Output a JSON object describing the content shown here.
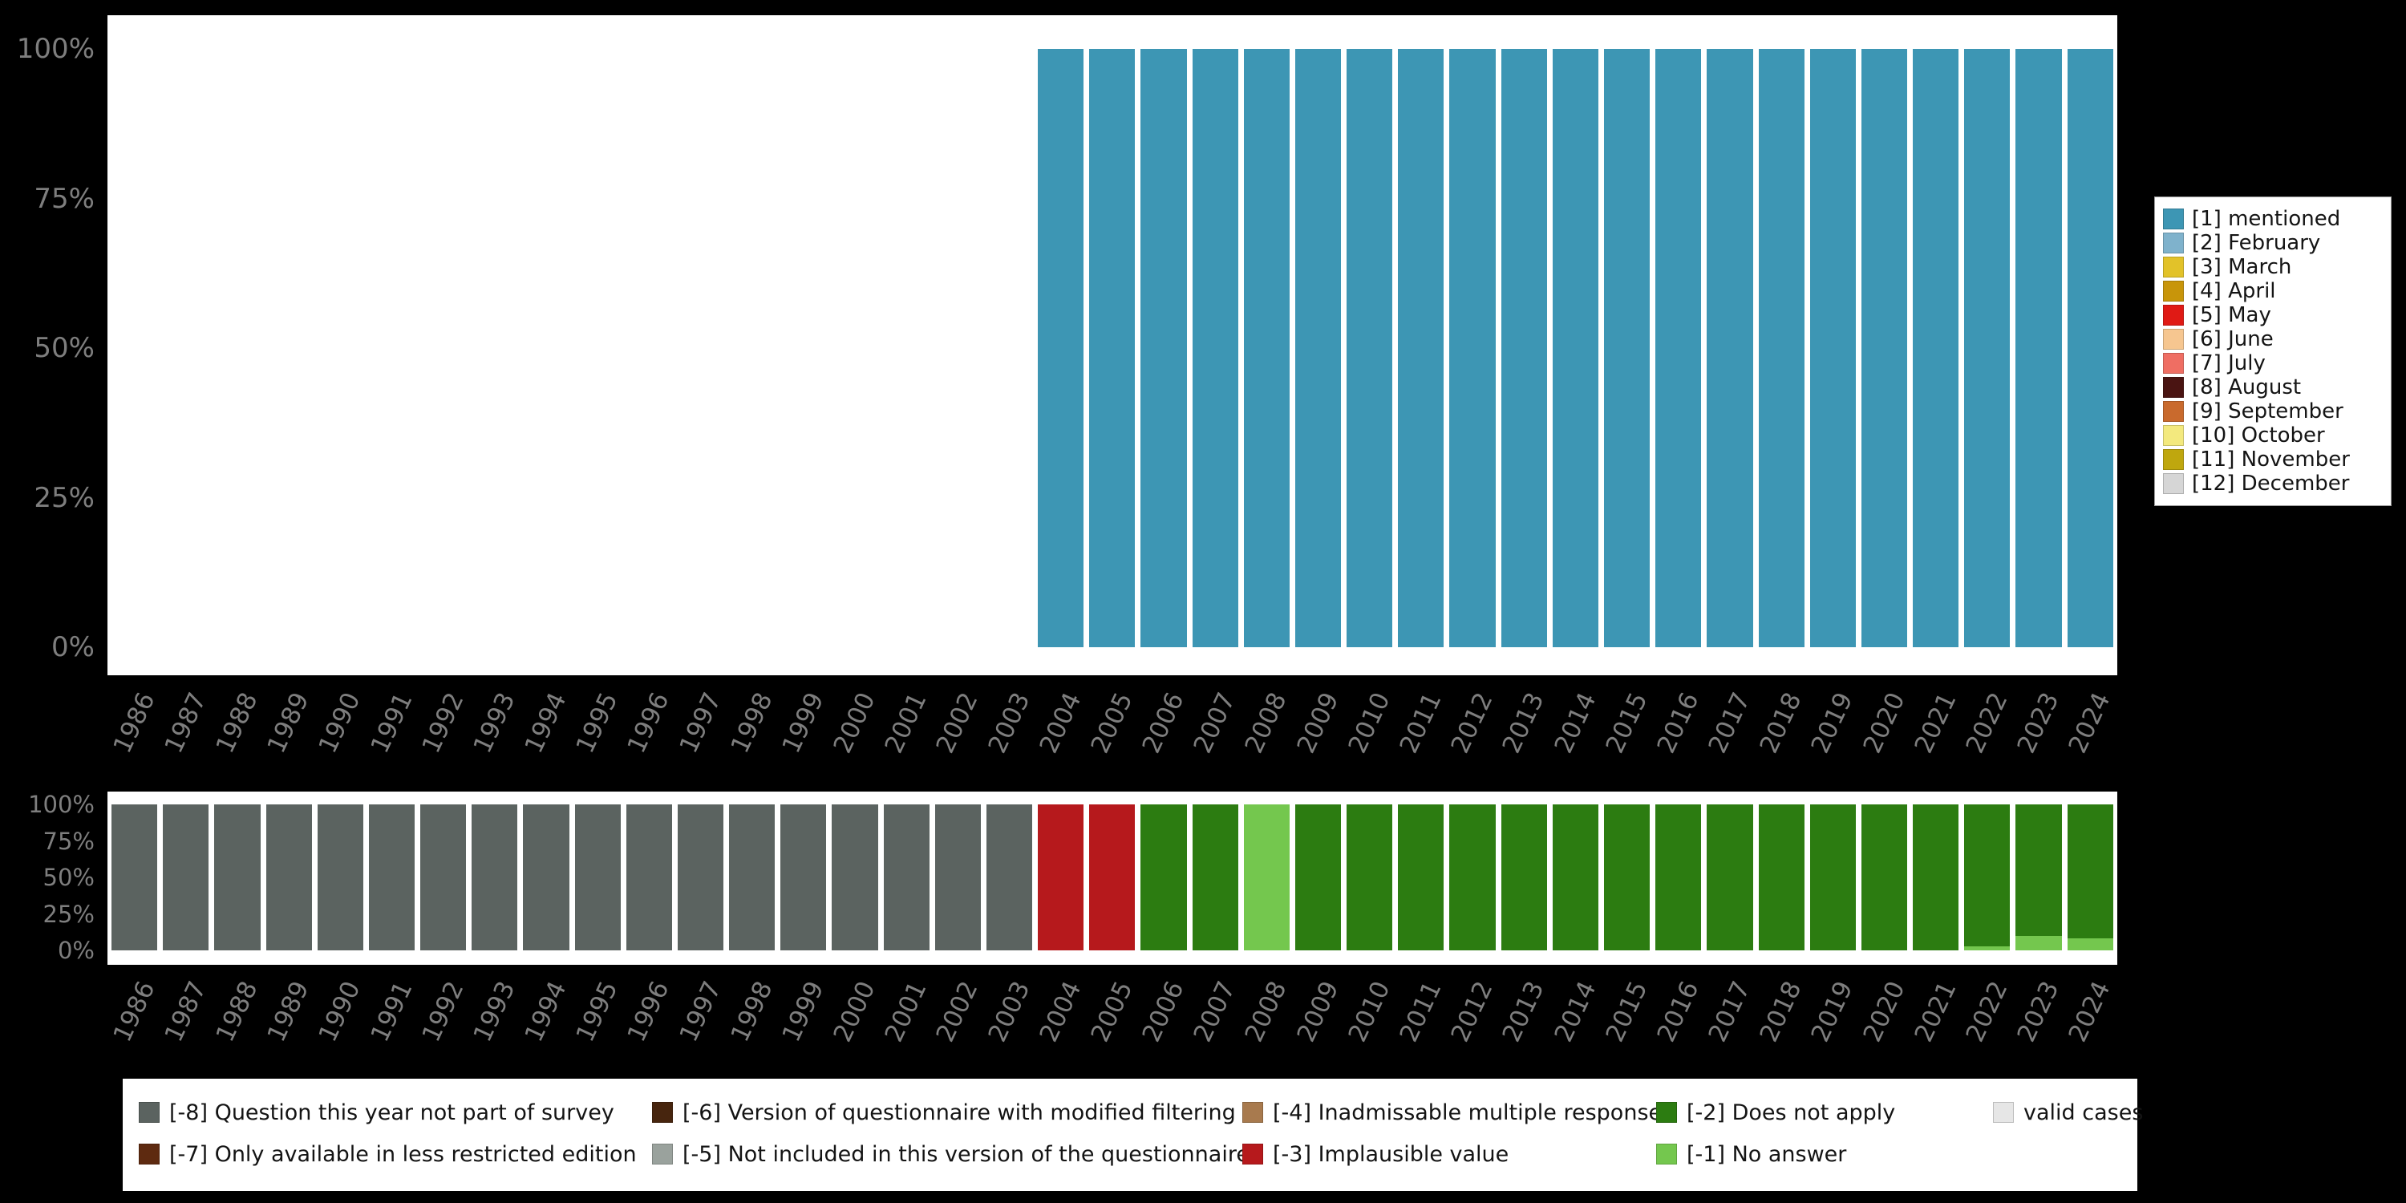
{
  "page": {
    "background": "#000000",
    "plot_background": "#ffffff",
    "axis_text_color": "#7e7e7e"
  },
  "chart_data": [
    {
      "id": "top",
      "type": "bar",
      "stacked": true,
      "unit": "percent",
      "ylim": [
        0,
        100
      ],
      "grid": false,
      "y_ticks": [
        "100%",
        "75%",
        "50%",
        "25%",
        "0%"
      ],
      "categories": [
        "1986",
        "1987",
        "1988",
        "1989",
        "1990",
        "1991",
        "1992",
        "1993",
        "1994",
        "1995",
        "1996",
        "1997",
        "1998",
        "1999",
        "2000",
        "2001",
        "2002",
        "2003",
        "2004",
        "2005",
        "2006",
        "2007",
        "2008",
        "2009",
        "2010",
        "2011",
        "2012",
        "2013",
        "2014",
        "2015",
        "2016",
        "2017",
        "2018",
        "2019",
        "2020",
        "2021",
        "2022",
        "2023",
        "2024"
      ],
      "stack_order": "bottom-to-top",
      "series": [
        {
          "name": "[1] mentioned",
          "code": "1",
          "color": "#3d96b4",
          "values": [
            0,
            0,
            0,
            0,
            0,
            0,
            0,
            0,
            0,
            0,
            0,
            0,
            0,
            0,
            0,
            0,
            0,
            0,
            100,
            100,
            100,
            100,
            100,
            100,
            100,
            100,
            100,
            100,
            100,
            100,
            100,
            100,
            100,
            100,
            100,
            100,
            100,
            100,
            100
          ]
        }
      ],
      "legend": {
        "position": "right",
        "entries": [
          {
            "label": "[1] mentioned",
            "color": "#3d96b4"
          },
          {
            "label": "[2] February",
            "color": "#7fb2cc"
          },
          {
            "label": "[3] March",
            "color": "#e2c229"
          },
          {
            "label": "[4] April",
            "color": "#c8950a"
          },
          {
            "label": "[5] May",
            "color": "#e01a15"
          },
          {
            "label": "[6] June",
            "color": "#f6c690"
          },
          {
            "label": "[7] July",
            "color": "#ef6e63"
          },
          {
            "label": "[8] August",
            "color": "#4a1412"
          },
          {
            "label": "[9] September",
            "color": "#c96a2d"
          },
          {
            "label": "[10] October",
            "color": "#f3e97e"
          },
          {
            "label": "[11] November",
            "color": "#bfa70e"
          },
          {
            "label": "[12] December",
            "color": "#d6d6d6"
          }
        ]
      }
    },
    {
      "id": "bottom",
      "type": "bar",
      "stacked": true,
      "unit": "percent",
      "ylim": [
        0,
        100
      ],
      "grid": false,
      "y_ticks": [
        "100%",
        "75%",
        "50%",
        "25%",
        "0%"
      ],
      "categories": [
        "1986",
        "1987",
        "1988",
        "1989",
        "1990",
        "1991",
        "1992",
        "1993",
        "1994",
        "1995",
        "1996",
        "1997",
        "1998",
        "1999",
        "2000",
        "2001",
        "2002",
        "2003",
        "2004",
        "2005",
        "2006",
        "2007",
        "2008",
        "2009",
        "2010",
        "2011",
        "2012",
        "2013",
        "2014",
        "2015",
        "2016",
        "2017",
        "2018",
        "2019",
        "2020",
        "2021",
        "2022",
        "2023",
        "2024"
      ],
      "stack_order": "bottom-to-top",
      "series": [
        {
          "name": "[-1] No answer",
          "code": "-1",
          "color": "#74c74e",
          "values": [
            0,
            0,
            0,
            0,
            0,
            0,
            0,
            0,
            0,
            0,
            0,
            0,
            0,
            0,
            0,
            0,
            0,
            0,
            0,
            0,
            0,
            0,
            100,
            0,
            0,
            0,
            0,
            0,
            0,
            0,
            0,
            0,
            0,
            0,
            0,
            0,
            3,
            10,
            8
          ]
        },
        {
          "name": "[-2] Does not apply",
          "code": "-2",
          "color": "#2c7c11",
          "values": [
            0,
            0,
            0,
            0,
            0,
            0,
            0,
            0,
            0,
            0,
            0,
            0,
            0,
            0,
            0,
            0,
            0,
            0,
            0,
            0,
            100,
            100,
            0,
            100,
            100,
            100,
            100,
            100,
            100,
            100,
            100,
            100,
            100,
            100,
            100,
            100,
            97,
            90,
            92
          ]
        },
        {
          "name": "[-3] Implausible value",
          "code": "-3",
          "color": "#b6191c",
          "values": [
            0,
            0,
            0,
            0,
            0,
            0,
            0,
            0,
            0,
            0,
            0,
            0,
            0,
            0,
            0,
            0,
            0,
            0,
            100,
            100,
            0,
            0,
            0,
            0,
            0,
            0,
            0,
            0,
            0,
            0,
            0,
            0,
            0,
            0,
            0,
            0,
            0,
            0,
            0
          ]
        },
        {
          "name": "[-8] Question this year not part of survey",
          "code": "-8",
          "color": "#5b6360",
          "values": [
            100,
            100,
            100,
            100,
            100,
            100,
            100,
            100,
            100,
            100,
            100,
            100,
            100,
            100,
            100,
            100,
            100,
            100,
            0,
            0,
            0,
            0,
            0,
            0,
            0,
            0,
            0,
            0,
            0,
            0,
            0,
            0,
            0,
            0,
            0,
            0,
            0,
            0,
            0
          ]
        }
      ],
      "legend": {
        "position": "bottom",
        "entries": [
          {
            "label": "[-8] Question this year not part of survey",
            "color": "#5b6360"
          },
          {
            "label": "[-6] Version of questionnaire with modified filtering",
            "color": "#47250e"
          },
          {
            "label": "[-4] Inadmissable multiple response",
            "color": "#a87a4e"
          },
          {
            "label": "[-2] Does not apply",
            "color": "#2c7c11"
          },
          {
            "label": "valid cases",
            "color": "#e6e6e6"
          },
          {
            "label": "[-7] Only available in less restricted edition",
            "color": "#5e2a10"
          },
          {
            "label": "[-5] Not included in this version of the questionnaire",
            "color": "#9aa29d"
          },
          {
            "label": "[-3] Implausible value",
            "color": "#b6191c"
          },
          {
            "label": "[-1] No answer",
            "color": "#74c74e"
          }
        ]
      }
    }
  ]
}
